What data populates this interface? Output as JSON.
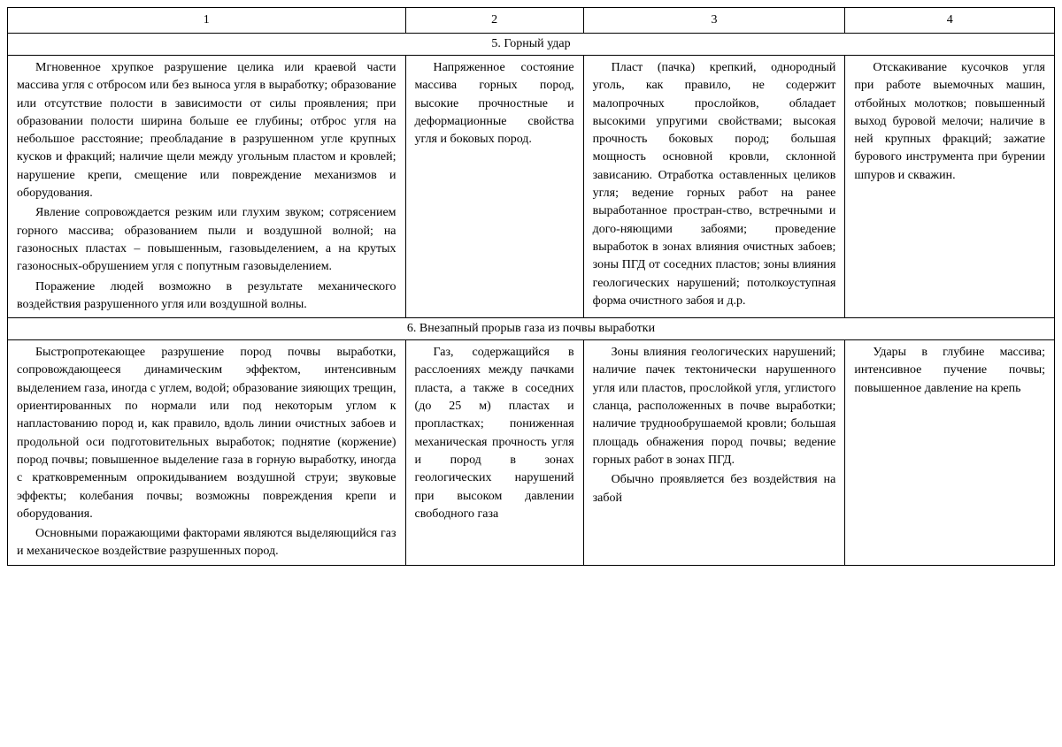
{
  "table": {
    "columns": [
      "1",
      "2",
      "3",
      "4"
    ],
    "column_widths_pct": [
      38,
      17,
      25,
      20
    ],
    "border_color": "#000000",
    "background_color": "#ffffff",
    "font_family": "Times New Roman",
    "font_size_pt": 11,
    "text_color": "#000000",
    "sections": [
      {
        "title": "5. Горный удар",
        "cells": [
          [
            "Мгновенное хрупкое разрушение целика или краевой части массива угля с отбросом или без выноса угля в выработку; образование или отсутствие полости в зависимости от силы проявления; при образовании полости ширина больше ее глубины; отброс угля на небольшое расстояние; преобладание в разрушенном угле крупных кусков и фракций; наличие щели между угольным пластом и кровлей; нарушение крепи, смещение или повреждение механизмов и оборудования.",
            "Явление сопровождается резким или глухим звуком; сотрясением горного массива; образованием пыли и воздушной волной; на газоносных пластах – повышенным, газовыделением, а на крутых газоносных-обрушением угля с попутным газовыделением.",
            "Поражение людей возможно в результате механического воздействия разрушенного угля или воздушной волны."
          ],
          [
            "Напряженное состояние массива горных пород, высокие прочностные и деформационные свойства угля и боковых пород."
          ],
          [
            "Пласт (пачка) крепкий, однородный уголь, как правило, не содержит малопрочных прослойков, обладает высокими упругими свойствами; высокая прочность боковых пород; большая мощность основной кровли, склонной зависанию. Отработка оставленных целиков угля; ведение горных работ на ранее выработанное простран-ство, встречными и дого-няющими забоями; проведение выработок в зонах влияния очистных забоев; зоны ПГД от  соседних пластов; зоны влияния геологических нарушений; потолкоуступная форма очистного забоя и д.р."
          ],
          [
            "Отскакивание кусочков угля при работе выемочных машин, отбойных молотков; повышенный выход буровой мелочи; наличие в ней крупных фракций; зажатие бурового инструмента при бурении шпуров и скважин."
          ]
        ]
      },
      {
        "title": "6. Внезапный прорыв газа из почвы выработки",
        "cells": [
          [
            "Быстропротекающее разрушение пород почвы выработки, сопровождающееся динамическим эффектом, интенсивным выделением газа, иногда с углем, водой; образование зияющих трещин, ориентированных по нормали или под некоторым углом к напластованию пород и, как правило, вдоль линии очистных забоев и продольной оси подготовительных выработок; поднятие (коржение) пород почвы; повышенное выделение газа в горную выработку, иногда с кратковременным опрокидыванием воздушной струи; звуковые эффекты; колебания почвы; возможны повреждения крепи и оборудования.",
            "Основными поражающими факторами являются выделяющийся газ и механическое воздействие разрушенных пород."
          ],
          [
            "Газ, содержащийся в расслоениях между пачками пласта, а также в соседних (до 25 м) пластах и пропластках; пониженная механическая прочность угля и пород в зонах геологических нарушений при высоком давлении свободного газа"
          ],
          [
            "Зоны влияния геологических нарушений; наличие пачек тектонически нарушенного угля или пластов, прослойкой угля, углистого сланца, расположенных в почве выработки; наличие труднообрушаемой кровли; большая площадь обнажения пород почвы; ведение горных работ в зонах ПГД.",
            "Обычно проявляется без воздействия на забой"
          ],
          [
            "Удары в глубине массива; интенсивное пучение почвы; повышенное давление на крепь"
          ]
        ]
      }
    ]
  }
}
